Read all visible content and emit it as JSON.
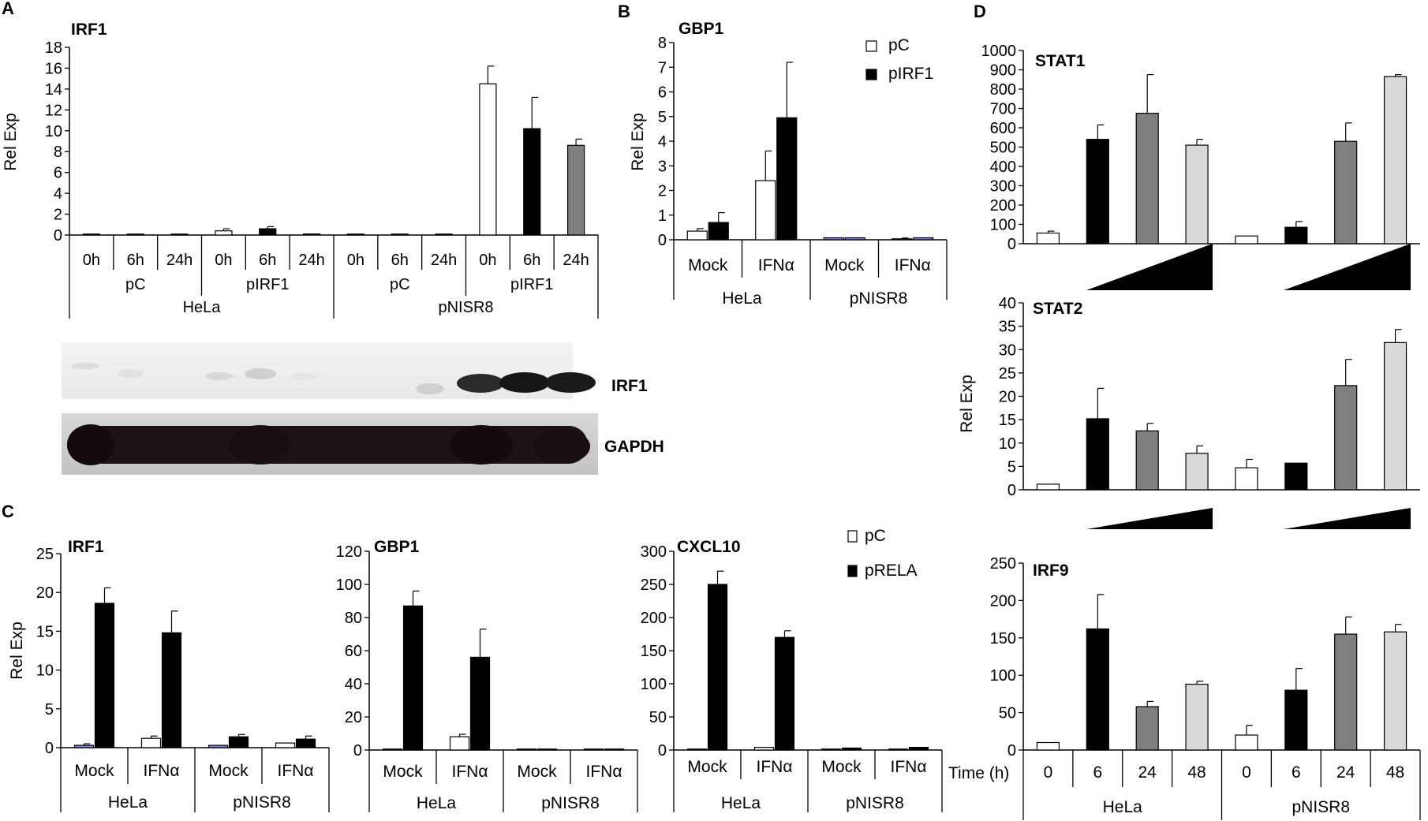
{
  "panel_letters": [
    "A",
    "B",
    "C",
    "D"
  ],
  "y_label": "Rel Exp",
  "colors": {
    "white": "#ffffff",
    "black": "#000000",
    "dark_gray": "#7f7f7f",
    "light_gray": "#d9d9d9",
    "blue": "#8080c8"
  },
  "blot": {
    "band_labels": [
      "IRF1",
      "GAPDH"
    ]
  },
  "legend_B": [
    "pC",
    "pIRF1"
  ],
  "legend_C": [
    "pC",
    "pRELA"
  ],
  "D_time_label": "Time (h)",
  "chart_data": [
    {
      "id": "A",
      "type": "bar",
      "title": "IRF1",
      "ylabel": "Rel Exp",
      "ylim": [
        0,
        18
      ],
      "yticks": [
        0,
        2,
        4,
        6,
        8,
        10,
        12,
        14,
        16,
        18
      ],
      "categories": [
        "0h",
        "6h",
        "24h",
        "0h",
        "6h",
        "24h",
        "0h",
        "6h",
        "24h",
        "0h",
        "6h",
        "24h"
      ],
      "values": [
        0,
        0,
        0,
        0.4,
        0.6,
        0.1,
        0,
        0,
        0,
        14.5,
        10.2,
        8.6
      ],
      "errors": [
        0,
        0,
        0,
        0.2,
        0.2,
        0,
        0,
        0,
        0,
        1.7,
        3.0,
        0.6
      ],
      "colors": [
        "white",
        "black",
        "dark_gray",
        "white",
        "black",
        "blue",
        "white",
        "black",
        "dark_gray",
        "white",
        "black",
        "dark_gray"
      ],
      "group_labels": [
        "pC",
        "pIRF1",
        "pC",
        "pIRF1"
      ],
      "cell_labels": [
        "HeLa",
        "pNISR8"
      ]
    },
    {
      "id": "B",
      "type": "bar",
      "title": "GBP1",
      "ylabel": "Rel Exp",
      "ylim": [
        0,
        8
      ],
      "yticks": [
        0,
        1,
        2,
        3,
        4,
        5,
        6,
        7,
        8
      ],
      "categories": [
        "Mock",
        "IFNα",
        "Mock",
        "IFNα"
      ],
      "cell_labels": [
        "HeLa",
        "pNISR8"
      ],
      "series": [
        {
          "name": "pC",
          "values": [
            0.35,
            2.4,
            0.08,
            0.02
          ],
          "errors": [
            0.1,
            1.2,
            0,
            0.05
          ]
        },
        {
          "name": "pIRF1",
          "values": [
            0.7,
            4.95,
            0.08,
            0.08
          ],
          "errors": [
            0.4,
            2.25,
            0,
            0
          ]
        }
      ]
    },
    {
      "id": "C1",
      "type": "bar",
      "title": "IRF1",
      "ylabel": "Rel Exp",
      "ylim": [
        0,
        25
      ],
      "yticks": [
        0,
        5,
        10,
        15,
        20,
        25
      ],
      "categories": [
        "Mock",
        "IFNα",
        "Mock",
        "IFNα"
      ],
      "cell_labels": [
        "HeLa",
        "pNISR8"
      ],
      "series": [
        {
          "name": "pC",
          "values": [
            0.3,
            1.2,
            0.3,
            0.6
          ],
          "errors": [
            0.2,
            0.3,
            0,
            0
          ]
        },
        {
          "name": "pRELA",
          "values": [
            18.6,
            14.8,
            1.4,
            1.1
          ],
          "errors": [
            2.0,
            2.8,
            0.3,
            0.4
          ]
        }
      ]
    },
    {
      "id": "C2",
      "type": "bar",
      "title": "GBP1",
      "ylim": [
        0,
        120
      ],
      "yticks": [
        0,
        20,
        40,
        60,
        80,
        100,
        120
      ],
      "categories": [
        "Mock",
        "IFNα",
        "Mock",
        "IFNα"
      ],
      "cell_labels": [
        "HeLa",
        "pNISR8"
      ],
      "series": [
        {
          "name": "pC",
          "values": [
            0.5,
            8,
            0.3,
            0.3
          ],
          "errors": [
            0,
            1.5,
            0,
            0
          ]
        },
        {
          "name": "pRELA",
          "values": [
            87,
            56,
            0.4,
            0.4
          ],
          "errors": [
            9,
            17,
            0,
            0
          ]
        }
      ]
    },
    {
      "id": "C3",
      "type": "bar",
      "title": "CXCL10",
      "ylim": [
        0,
        300
      ],
      "yticks": [
        0,
        50,
        100,
        150,
        200,
        250,
        300
      ],
      "categories": [
        "Mock",
        "IFNα",
        "Mock",
        "IFNα"
      ],
      "cell_labels": [
        "HeLa",
        "pNISR8"
      ],
      "series": [
        {
          "name": "pC",
          "values": [
            0.5,
            4,
            0.5,
            0.5
          ],
          "errors": [
            0,
            0,
            0,
            0
          ]
        },
        {
          "name": "pRELA",
          "values": [
            250,
            170,
            3,
            4
          ],
          "errors": [
            20,
            10,
            0,
            0
          ]
        }
      ]
    },
    {
      "id": "D1",
      "type": "bar",
      "title": "STAT1",
      "ylim": [
        0,
        1000
      ],
      "yticks": [
        0,
        100,
        200,
        300,
        400,
        500,
        600,
        700,
        800,
        900,
        1000
      ],
      "categories": [
        "0",
        "6",
        "24",
        "48",
        "0",
        "6",
        "24",
        "48"
      ],
      "values": [
        55,
        540,
        675,
        510,
        40,
        85,
        530,
        865
      ],
      "errors": [
        10,
        75,
        200,
        30,
        0,
        30,
        95,
        10
      ],
      "colors": [
        "white",
        "black",
        "dark_gray",
        "light_gray",
        "white",
        "black",
        "dark_gray",
        "light_gray"
      ]
    },
    {
      "id": "D2",
      "type": "bar",
      "title": "STAT2",
      "ylabel": "Rel Exp",
      "ylim": [
        0,
        40
      ],
      "yticks": [
        0,
        5,
        10,
        15,
        20,
        25,
        30,
        35,
        40
      ],
      "categories": [
        "0",
        "6",
        "24",
        "48",
        "0",
        "6",
        "24",
        "48"
      ],
      "values": [
        1.2,
        15.2,
        12.6,
        7.8,
        4.7,
        5.7,
        22.3,
        31.5
      ],
      "errors": [
        0,
        6.5,
        1.6,
        1.6,
        1.8,
        0,
        5.6,
        2.8
      ],
      "colors": [
        "white",
        "black",
        "dark_gray",
        "light_gray",
        "white",
        "black",
        "dark_gray",
        "light_gray"
      ]
    },
    {
      "id": "D3",
      "type": "bar",
      "title": "IRF9",
      "ylim": [
        0,
        250
      ],
      "yticks": [
        0,
        50,
        100,
        150,
        200,
        250
      ],
      "categories": [
        "0",
        "6",
        "24",
        "48",
        "0",
        "6",
        "24",
        "48"
      ],
      "values": [
        10,
        162,
        58,
        88,
        20,
        80,
        155,
        158
      ],
      "errors": [
        0,
        46,
        7,
        4,
        13,
        29,
        23,
        10
      ],
      "colors": [
        "white",
        "black",
        "dark_gray",
        "light_gray",
        "white",
        "black",
        "dark_gray",
        "light_gray"
      ],
      "cell_labels": [
        "HeLa",
        "pNISR8"
      ]
    }
  ]
}
